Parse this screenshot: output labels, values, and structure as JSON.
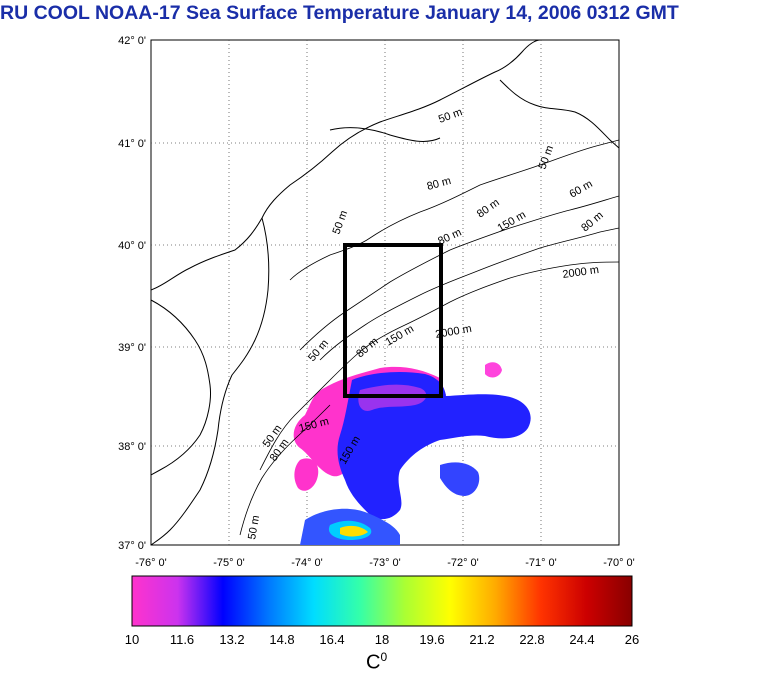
{
  "title": "RU COOL  NOAA-17 Sea Surface Temperature January 14, 2006 0312 GMT",
  "latitudes": [
    "42° 0'",
    "41° 0'",
    "40° 0'",
    "39° 0'",
    "38° 0'",
    "37° 0'"
  ],
  "longitudes": [
    "-76° 0'",
    "-75° 0'",
    "-74° 0'",
    "-73° 0'",
    "-72° 0'",
    "-71° 0'",
    "-70° 0'"
  ],
  "contour_labels": [
    {
      "text": "50 m"
    },
    {
      "text": "50 m"
    },
    {
      "text": "80 m"
    },
    {
      "text": "60 m"
    },
    {
      "text": "80 m"
    },
    {
      "text": "150 m"
    },
    {
      "text": "80 m"
    },
    {
      "text": "2000 m"
    },
    {
      "text": "2000 m"
    },
    {
      "text": "150 m"
    },
    {
      "text": "80 m"
    },
    {
      "text": "50 m"
    },
    {
      "text": "50 m"
    },
    {
      "text": "80 m"
    },
    {
      "text": "150 m"
    },
    {
      "text": "50 m"
    },
    {
      "text": "80 m"
    },
    {
      "text": "150 m"
    },
    {
      "text": "50 m"
    }
  ],
  "colorbar": {
    "min": 10,
    "max": 26,
    "ticks": [
      "10",
      "11.6",
      "13.2",
      "14.8",
      "16.4",
      "18",
      "19.6",
      "21.2",
      "22.8",
      "24.4",
      "26"
    ],
    "units_base": "C",
    "units_sup": "0",
    "colors": [
      "#ff33cc",
      "#cc33ee",
      "#0000ff",
      "#0077ff",
      "#00ddff",
      "#33ffaa",
      "#aaff33",
      "#ffff00",
      "#ffaa00",
      "#ff3300",
      "#cc0000",
      "#880000"
    ]
  },
  "colors": {
    "title": "#1a2ea8",
    "box": "#000000",
    "grid": "#555555"
  }
}
